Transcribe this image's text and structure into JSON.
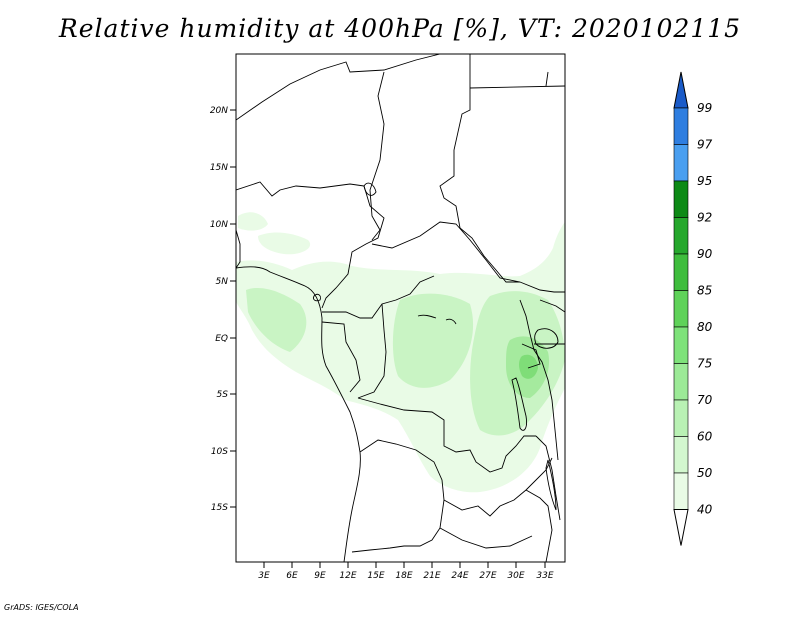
{
  "title": "Relative humidity at 400hPa [%], VT: 2020102115",
  "credit": "GrADS: IGES/COLA",
  "map": {
    "region": "Central Africa",
    "lat_ticks": [
      "20N",
      "15N",
      "10N",
      "5N",
      "EQ",
      "5S",
      "10S",
      "15S"
    ],
    "lon_ticks": [
      "3E",
      "6E",
      "9E",
      "12E",
      "15E",
      "18E",
      "21E",
      "24E",
      "27E",
      "30E",
      "33E"
    ]
  },
  "colorbar": {
    "labels": [
      "99",
      "97",
      "95",
      "92",
      "90",
      "85",
      "80",
      "75",
      "70",
      "60",
      "50",
      "40"
    ],
    "colors": [
      "#1a5bc8",
      "#2f7ee0",
      "#4a9ff0",
      "#0d8a16",
      "#26a82d",
      "#3fbd3d",
      "#5fd259",
      "#7ee27a",
      "#9cea97",
      "#b9f1b4",
      "#d3f7cf",
      "#e9fbe6"
    ]
  },
  "humidity_colors": {
    "light": "#e9fbe6",
    "mid": "#c9f4c4",
    "darker": "#a5ea9e",
    "darkest": "#7fdd78"
  }
}
